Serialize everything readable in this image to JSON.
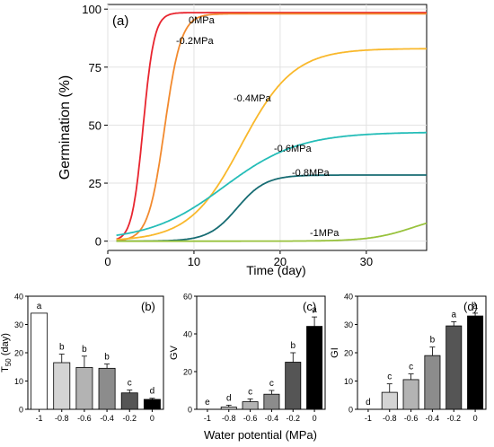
{
  "figure": {
    "xlabel_shared": "Water potential (MPa)"
  },
  "chart_data": [
    {
      "type": "line",
      "panel_label": "(a)",
      "xlabel": "Time (day)",
      "ylabel": "Germination (%)",
      "xlim": [
        0,
        37
      ],
      "ylim": [
        -4,
        102
      ],
      "xticks": [
        0,
        10,
        20,
        30
      ],
      "yticks": [
        0,
        25,
        50,
        75,
        100
      ],
      "grid": true,
      "series": [
        {
          "name": "0MPa",
          "color": "#e8252f",
          "asym": 98.5,
          "mid": 4.1,
          "slope": 1.55
        },
        {
          "name": "-0.2MPa",
          "color": "#f28a2e",
          "asym": 98.0,
          "mid": 6.6,
          "slope": 1.05
        },
        {
          "name": "-0.4MPa",
          "color": "#f9b82b",
          "asym": 83.0,
          "mid": 15.5,
          "slope": 0.33
        },
        {
          "name": "-0.6MPa",
          "color": "#25bdb8",
          "asym": 47.0,
          "mid": 13.5,
          "slope": 0.23
        },
        {
          "name": "-0.8MPa",
          "color": "#176c73",
          "asym": 28.5,
          "mid": 15.0,
          "slope": 0.6
        },
        {
          "name": "-1MPa",
          "color": "#98c23c",
          "asym": 12.0,
          "mid": 35.5,
          "slope": 0.4
        }
      ],
      "curve_labels": [
        "0MPa",
        "-0.2MPa",
        "-0.4MPa",
        "-0.6MPa",
        "-0.8MPa",
        "-1MPa"
      ]
    },
    {
      "type": "bar",
      "panel_label": "(b)",
      "ylabel": "T50 (day)",
      "ylabel_main": "T",
      "ylabel_sub": "50",
      "ylabel_unit": " (day)",
      "ylim": [
        0,
        40
      ],
      "yticks": [
        0,
        10,
        20,
        30,
        40
      ],
      "categories": [
        "-1",
        "-0.8",
        "-0.6",
        "-0.4",
        "-0.2",
        "0"
      ],
      "values": [
        34,
        16.5,
        14.8,
        14.5,
        5.8,
        3.5
      ],
      "errors": [
        0,
        3,
        4,
        1.5,
        1,
        0.4
      ],
      "letters": [
        "a",
        "b",
        "b",
        "b",
        "c",
        "d"
      ],
      "colors": [
        "#ffffff",
        "#d4d4d4",
        "#b3b3b3",
        "#8c8c8c",
        "#555555",
        "#000000"
      ]
    },
    {
      "type": "bar",
      "panel_label": "(c)",
      "ylabel": "GV",
      "ylim": [
        0,
        60
      ],
      "yticks": [
        0,
        20,
        40,
        60
      ],
      "categories": [
        "-1",
        "-0.8",
        "-0.6",
        "-0.4",
        "-0.2",
        "0"
      ],
      "values": [
        0,
        1.2,
        4,
        8,
        25,
        44
      ],
      "errors": [
        0,
        1,
        1.5,
        2,
        5,
        5
      ],
      "letters": [
        "e",
        "d",
        "c",
        "c",
        "b",
        "a"
      ],
      "colors": [
        "#ffffff",
        "#d4d4d4",
        "#b3b3b3",
        "#8c8c8c",
        "#555555",
        "#000000"
      ]
    },
    {
      "type": "bar",
      "panel_label": "(d)",
      "ylabel": "GI",
      "ylim": [
        0,
        40
      ],
      "yticks": [
        0,
        10,
        20,
        30,
        40
      ],
      "categories": [
        "-1",
        "-0.8",
        "-0.6",
        "-0.4",
        "-0.2",
        "0"
      ],
      "values": [
        0,
        6,
        10.5,
        19,
        29.5,
        33
      ],
      "errors": [
        0,
        3,
        2,
        3,
        1.5,
        1
      ],
      "letters": [
        "d",
        "c",
        "c",
        "b",
        "a",
        "a"
      ],
      "colors": [
        "#ffffff",
        "#d4d4d4",
        "#b3b3b3",
        "#8c8c8c",
        "#555555",
        "#000000"
      ]
    }
  ]
}
